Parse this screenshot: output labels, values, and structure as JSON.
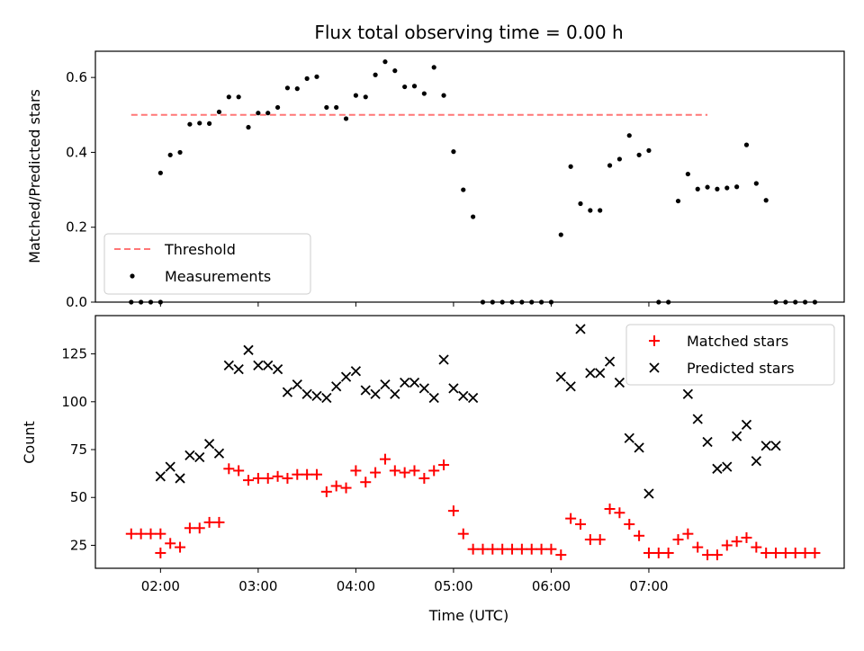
{
  "chart_data": [
    {
      "type": "scatter",
      "title": "Flux total observing time = 0.00 h",
      "xlabel": "",
      "ylabel": "Matched/Predicted stars",
      "ylim": [
        0,
        0.67
      ],
      "yticks": [
        0.0,
        0.2,
        0.4,
        0.6
      ],
      "ytick_labels": [
        "0.0",
        "0.2",
        "0.4",
        "0.6"
      ],
      "legend_position": "lower-left",
      "threshold": {
        "name": "Threshold",
        "value": 0.5,
        "x_start": "01:42",
        "x_end": "07:36",
        "color": "#ff7777",
        "style": "dashed"
      },
      "series": [
        {
          "name": "Measurements",
          "color": "#000000",
          "marker": "dot",
          "points": [
            [
              "01:42",
              0.0
            ],
            [
              "01:48",
              0.0
            ],
            [
              "01:54",
              0.0
            ],
            [
              "02:00",
              0.0
            ],
            [
              "02:00",
              0.345
            ],
            [
              "02:06",
              0.393
            ],
            [
              "02:12",
              0.4
            ],
            [
              "02:18",
              0.475
            ],
            [
              "02:24",
              0.478
            ],
            [
              "02:30",
              0.477
            ],
            [
              "02:36",
              0.508
            ],
            [
              "02:42",
              0.548
            ],
            [
              "02:48",
              0.548
            ],
            [
              "02:54",
              0.467
            ],
            [
              "03:00",
              0.505
            ],
            [
              "03:06",
              0.505
            ],
            [
              "03:12",
              0.52
            ],
            [
              "03:18",
              0.572
            ],
            [
              "03:24",
              0.57
            ],
            [
              "03:30",
              0.597
            ],
            [
              "03:36",
              0.602
            ],
            [
              "03:42",
              0.52
            ],
            [
              "03:48",
              0.52
            ],
            [
              "03:54",
              0.49
            ],
            [
              "04:00",
              0.552
            ],
            [
              "04:06",
              0.548
            ],
            [
              "04:12",
              0.607
            ],
            [
              "04:18",
              0.642
            ],
            [
              "04:24",
              0.618
            ],
            [
              "04:30",
              0.575
            ],
            [
              "04:36",
              0.577
            ],
            [
              "04:42",
              0.557
            ],
            [
              "04:48",
              0.627
            ],
            [
              "04:54",
              0.552
            ],
            [
              "05:00",
              0.402
            ],
            [
              "05:06",
              0.3
            ],
            [
              "05:12",
              0.228
            ],
            [
              "05:18",
              0.0
            ],
            [
              "05:24",
              0.0
            ],
            [
              "05:30",
              0.0
            ],
            [
              "05:36",
              0.0
            ],
            [
              "05:42",
              0.0
            ],
            [
              "05:48",
              0.0
            ],
            [
              "05:54",
              0.0
            ],
            [
              "06:00",
              0.0
            ],
            [
              "06:06",
              0.18
            ],
            [
              "06:12",
              0.362
            ],
            [
              "06:18",
              0.263
            ],
            [
              "06:24",
              0.245
            ],
            [
              "06:30",
              0.245
            ],
            [
              "06:36",
              0.365
            ],
            [
              "06:42",
              0.382
            ],
            [
              "06:48",
              0.445
            ],
            [
              "06:54",
              0.393
            ],
            [
              "07:00",
              0.405
            ],
            [
              "07:06",
              0.0
            ],
            [
              "07:12",
              0.0
            ],
            [
              "07:18",
              0.27
            ],
            [
              "07:24",
              0.342
            ],
            [
              "07:30",
              0.302
            ],
            [
              "07:36",
              0.307
            ],
            [
              "07:42",
              0.302
            ],
            [
              "07:48",
              0.305
            ],
            [
              "07:54",
              0.308
            ],
            [
              "08:00",
              0.42
            ],
            [
              "08:06",
              0.317
            ],
            [
              "08:12",
              0.272
            ],
            [
              "08:18",
              0.0
            ],
            [
              "08:24",
              0.0
            ],
            [
              "08:30",
              0.0
            ],
            [
              "08:36",
              0.0
            ],
            [
              "08:42",
              0.0
            ]
          ]
        }
      ]
    },
    {
      "type": "scatter",
      "title": "",
      "xlabel": "Time (UTC)",
      "ylabel": "Count",
      "ylim": [
        13,
        145
      ],
      "yticks": [
        25,
        50,
        75,
        100,
        125
      ],
      "ytick_labels": [
        "25",
        "50",
        "75",
        "100",
        "125"
      ],
      "xticks": [
        "02:00",
        "03:00",
        "04:00",
        "05:00",
        "06:00",
        "07:00"
      ],
      "legend_position": "upper-right",
      "series": [
        {
          "name": "Matched stars",
          "color": "#ff0000",
          "marker": "plus",
          "points": [
            [
              "01:42",
              31
            ],
            [
              "01:48",
              31
            ],
            [
              "01:54",
              31
            ],
            [
              "02:00",
              31
            ],
            [
              "02:00",
              21
            ],
            [
              "02:06",
              26
            ],
            [
              "02:12",
              24
            ],
            [
              "02:18",
              34
            ],
            [
              "02:24",
              34
            ],
            [
              "02:30",
              37
            ],
            [
              "02:36",
              37
            ],
            [
              "02:42",
              65
            ],
            [
              "02:48",
              64
            ],
            [
              "02:54",
              59
            ],
            [
              "03:00",
              60
            ],
            [
              "03:06",
              60
            ],
            [
              "03:12",
              61
            ],
            [
              "03:18",
              60
            ],
            [
              "03:24",
              62
            ],
            [
              "03:30",
              62
            ],
            [
              "03:36",
              62
            ],
            [
              "03:42",
              53
            ],
            [
              "03:48",
              56
            ],
            [
              "03:54",
              55
            ],
            [
              "04:00",
              64
            ],
            [
              "04:06",
              58
            ],
            [
              "04:12",
              63
            ],
            [
              "04:18",
              70
            ],
            [
              "04:24",
              64
            ],
            [
              "04:30",
              63
            ],
            [
              "04:36",
              64
            ],
            [
              "04:42",
              60
            ],
            [
              "04:48",
              64
            ],
            [
              "04:54",
              67
            ],
            [
              "05:00",
              43
            ],
            [
              "05:06",
              31
            ],
            [
              "05:12",
              23
            ],
            [
              "05:18",
              23
            ],
            [
              "05:24",
              23
            ],
            [
              "05:30",
              23
            ],
            [
              "05:36",
              23
            ],
            [
              "05:42",
              23
            ],
            [
              "05:48",
              23
            ],
            [
              "05:54",
              23
            ],
            [
              "06:00",
              23
            ],
            [
              "06:06",
              20
            ],
            [
              "06:12",
              39
            ],
            [
              "06:18",
              36
            ],
            [
              "06:24",
              28
            ],
            [
              "06:30",
              28
            ],
            [
              "06:36",
              44
            ],
            [
              "06:42",
              42
            ],
            [
              "06:48",
              36
            ],
            [
              "06:54",
              30
            ],
            [
              "07:00",
              21
            ],
            [
              "07:06",
              21
            ],
            [
              "07:12",
              21
            ],
            [
              "07:18",
              28
            ],
            [
              "07:24",
              31
            ],
            [
              "07:30",
              24
            ],
            [
              "07:36",
              20
            ],
            [
              "07:42",
              20
            ],
            [
              "07:48",
              25
            ],
            [
              "07:54",
              27
            ],
            [
              "08:00",
              29
            ],
            [
              "08:06",
              24
            ],
            [
              "08:12",
              21
            ],
            [
              "08:18",
              21
            ],
            [
              "08:24",
              21
            ],
            [
              "08:30",
              21
            ],
            [
              "08:36",
              21
            ],
            [
              "08:42",
              21
            ]
          ]
        },
        {
          "name": "Predicted stars",
          "color": "#000000",
          "marker": "x",
          "points": [
            [
              "02:00",
              61
            ],
            [
              "02:06",
              66
            ],
            [
              "02:12",
              60
            ],
            [
              "02:18",
              72
            ],
            [
              "02:24",
              71
            ],
            [
              "02:30",
              78
            ],
            [
              "02:36",
              73
            ],
            [
              "02:42",
              119
            ],
            [
              "02:48",
              117
            ],
            [
              "02:54",
              127
            ],
            [
              "03:00",
              119
            ],
            [
              "03:06",
              119
            ],
            [
              "03:12",
              117
            ],
            [
              "03:18",
              105
            ],
            [
              "03:24",
              109
            ],
            [
              "03:30",
              104
            ],
            [
              "03:36",
              103
            ],
            [
              "03:42",
              102
            ],
            [
              "03:48",
              108
            ],
            [
              "03:54",
              113
            ],
            [
              "04:00",
              116
            ],
            [
              "04:06",
              106
            ],
            [
              "04:12",
              104
            ],
            [
              "04:18",
              109
            ],
            [
              "04:24",
              104
            ],
            [
              "04:30",
              110
            ],
            [
              "04:36",
              110
            ],
            [
              "04:42",
              107
            ],
            [
              "04:48",
              102
            ],
            [
              "04:54",
              122
            ],
            [
              "05:00",
              107
            ],
            [
              "05:06",
              103
            ],
            [
              "05:12",
              102
            ],
            [
              "06:06",
              113
            ],
            [
              "06:12",
              108
            ],
            [
              "06:18",
              138
            ],
            [
              "06:24",
              115
            ],
            [
              "06:30",
              115
            ],
            [
              "06:36",
              121
            ],
            [
              "06:42",
              110
            ],
            [
              "06:48",
              81
            ],
            [
              "06:54",
              76
            ],
            [
              "07:00",
              52
            ],
            [
              "07:24",
              104
            ],
            [
              "07:30",
              91
            ],
            [
              "07:36",
              79
            ],
            [
              "07:42",
              65
            ],
            [
              "07:48",
              66
            ],
            [
              "07:54",
              82
            ],
            [
              "08:00",
              88
            ],
            [
              "08:06",
              69
            ],
            [
              "08:12",
              77
            ],
            [
              "08:18",
              77
            ]
          ]
        }
      ]
    }
  ]
}
